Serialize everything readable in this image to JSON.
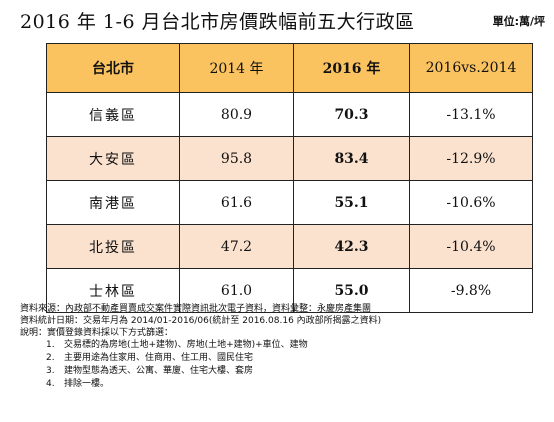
{
  "title": "2016 年 1-6 月台北市房價跌幅前五大行政區",
  "unit": "單位:萬/坪",
  "table": {
    "headers": [
      "台北市",
      "2014 年",
      "2016 年",
      "2016vs.2014"
    ],
    "rows": [
      {
        "district": "信義區",
        "v2014": "80.9",
        "v2016": "70.3",
        "change": "-13.1%"
      },
      {
        "district": "大安區",
        "v2014": "95.8",
        "v2016": "83.4",
        "change": "-12.9%"
      },
      {
        "district": "南港區",
        "v2014": "61.6",
        "v2016": "55.1",
        "change": "-10.6%"
      },
      {
        "district": "北投區",
        "v2014": "47.2",
        "v2016": "42.3",
        "change": "-10.4%"
      },
      {
        "district": "士林區",
        "v2014": "61.0",
        "v2016": "55.0",
        "change": "-9.8%"
      }
    ],
    "shaded_color": "#fbe2cf",
    "header_color": "#fbc360"
  },
  "notes": {
    "source": "資料來源：內政部不動產買賣成交案件實際資訊批次電子資料，資料彙整：永慶房產集團",
    "period": "資料統計日期：交易年月為 2014/01-2016/06(統計至 2016.08.16 內政部所揭露之資料)",
    "explain": "說明：實價登錄資料採以下方式篩選：",
    "items": [
      {
        "num": "1.",
        "text": "交易標的為房地(土地+建物)、房地(土地+建物)+車位、建物"
      },
      {
        "num": "2.",
        "text": "主要用途為住家用、住商用、住工用、國民住宅"
      },
      {
        "num": "3.",
        "text": "建物型態為透天、公寓、華廈、住宅大樓、套房"
      },
      {
        "num": "4.",
        "text": "排除一樓。"
      }
    ]
  }
}
